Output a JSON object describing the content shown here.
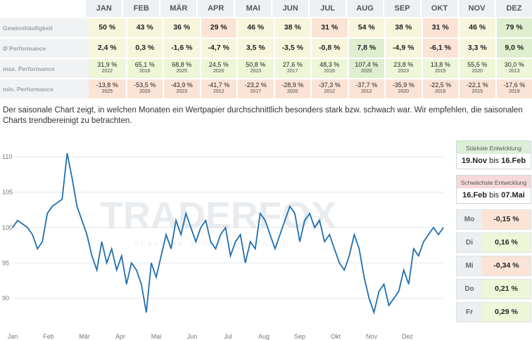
{
  "months": [
    "JAN",
    "FEB",
    "MÄR",
    "APR",
    "MAI",
    "JUN",
    "JUL",
    "AUG",
    "SEP",
    "OKT",
    "NOV",
    "DEZ"
  ],
  "rows": {
    "win": {
      "label": "Gewinnhäufigkeit",
      "values": [
        "50 %",
        "43 %",
        "36 %",
        "29 %",
        "46 %",
        "38 %",
        "31 %",
        "54 %",
        "38 %",
        "31 %",
        "46 %",
        "79 %"
      ]
    },
    "avg": {
      "label": "Ø Performance",
      "values": [
        "2,4 %",
        "0,3 %",
        "-1,6 %",
        "-4,7 %",
        "3,5 %",
        "-3,5 %",
        "-0,8 %",
        "7,8 %",
        "-4,9 %",
        "-6,1 %",
        "3,3 %",
        "9,0 %"
      ]
    },
    "max": {
      "label": "max. Performance",
      "values": [
        "31,9 %",
        "65,1 %",
        "68,8 %",
        "24,5 %",
        "50,8 %",
        "27,6 %",
        "48,3 %",
        "107,4 %",
        "23,8 %",
        "13,8 %",
        "55,5 %",
        "30,0 %"
      ],
      "years": [
        "2022",
        "2016",
        "2025",
        "2020",
        "2023",
        "2017",
        "2016",
        "2020",
        "2023",
        "2015",
        "2020",
        "2013"
      ]
    },
    "min": {
      "label": "min. Performance",
      "values": [
        "-13,8 %",
        "-53,5 %",
        "-43,9 %",
        "-41,7 %",
        "-23,2 %",
        "-28,9 %",
        "-37,3 %",
        "-37,7 %",
        "-35,9 %",
        "-22,5 %",
        "-22,1 %",
        "-17,6 %"
      ],
      "years": [
        "2025",
        "2020",
        "2023",
        "2012",
        "2017",
        "2020",
        "2012",
        "2012",
        "2020",
        "2016",
        "2015",
        "2019"
      ]
    }
  },
  "description": "Der saisonale Chart zeigt, in welchen Monaten ein Wertpapier durchschnittlich besonders stark bzw. schwach war. Wir empfehlen, die saisonalen Charts trendbereinigt zu betrachten.",
  "strongest": {
    "title": "Stärkste Entwicklung",
    "from": "19.Nov",
    "bis": "bis",
    "to": "16.Feb"
  },
  "weakest": {
    "title": "Schwächste Entwicklung",
    "from": "16.Feb",
    "bis": "bis",
    "to": "07.Mai"
  },
  "weekdays": [
    {
      "day": "Mo",
      "value": "-0,15 %"
    },
    {
      "day": "Di",
      "value": "0,16 %"
    },
    {
      "day": "Mi",
      "value": "-0,34 %"
    },
    {
      "day": "Do",
      "value": "0,21 %"
    },
    {
      "day": "Fr",
      "value": "0,29 %"
    }
  ],
  "watermark": {
    "main": "TRADERFOX",
    "sub": "REALTIME STOCK SCREENING"
  },
  "chart_data": {
    "type": "line",
    "x_ticks": [
      "Jan",
      "Feb",
      "Mär",
      "Apr",
      "Mai",
      "Jun",
      "Jul",
      "Aug",
      "Sep",
      "Okt",
      "Nov",
      "Dez"
    ],
    "y_ticks": [
      90,
      95,
      100,
      105,
      110
    ],
    "ylim": [
      86,
      112
    ],
    "color": "#1f6fb0",
    "series": [
      {
        "values": [
          100,
          101,
          100.5,
          100,
          99,
          97,
          98,
          102,
          103,
          103.5,
          104,
          110.5,
          107,
          103,
          101,
          99,
          96,
          94,
          98,
          95,
          97,
          94,
          96,
          92,
          95,
          94,
          92,
          88,
          95,
          93,
          96,
          99,
          97,
          101,
          99,
          102,
          100,
          98,
          100,
          101,
          98,
          97,
          99,
          100,
          96,
          98,
          99,
          95,
          98,
          97,
          102,
          101,
          99,
          97,
          99,
          101,
          103,
          102,
          98,
          101,
          102,
          100,
          101,
          98,
          99,
          97,
          95,
          94,
          96,
          99,
          97,
          93,
          90,
          88,
          91,
          92,
          89,
          90,
          91,
          94,
          92,
          97,
          96,
          98,
          99,
          100,
          99,
          100
        ]
      }
    ]
  }
}
